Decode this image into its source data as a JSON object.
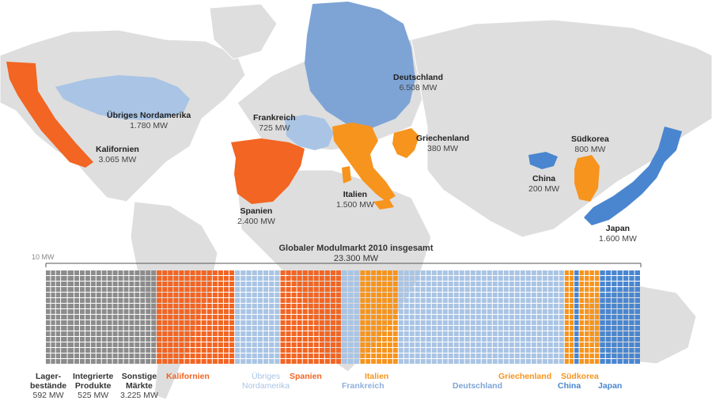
{
  "colors": {
    "ocean": "#ffffff",
    "land": "#dcdcdc",
    "gray": "#8c8c8c",
    "orange_dark": "#f26522",
    "orange_light": "#f7941d",
    "blue_light": "#a9c4e4",
    "blue_mid": "#7ea4d6",
    "blue_dark": "#4a86cf"
  },
  "map_labels": [
    {
      "name": "Übriges Nordamerika",
      "value": "1.780 MW"
    },
    {
      "name": "Kalifornien",
      "value": "3.065 MW"
    },
    {
      "name": "Frankreich",
      "value": "725 MW"
    },
    {
      "name": "Deutschland",
      "value": "6.508 MW"
    },
    {
      "name": "Griechenland",
      "value": "380 MW"
    },
    {
      "name": "Spanien",
      "value": "2.400 MW"
    },
    {
      "name": "Italien",
      "value": "1.500 MW"
    },
    {
      "name": "Südkorea",
      "value": "800 MW"
    },
    {
      "name": "China",
      "value": "200 MW"
    },
    {
      "name": "Japan",
      "value": "1.600 MW"
    }
  ],
  "chart_data": {
    "type": "waffle",
    "title": "Globaler Modulmarkt 2010 insgesamt",
    "total": "23.300 MW",
    "unit_note": "10 MW",
    "categories": [
      {
        "name": "Lager-\nbestände",
        "value": 592,
        "value_label": "592 MW",
        "color": "gray"
      },
      {
        "name": "Integrierte\nProdukte",
        "value": 525,
        "value_label": "525 MW",
        "color": "gray"
      },
      {
        "name": "Sonstige\nMärkte",
        "value": 3225,
        "value_label": "3.225 MW",
        "color": "gray"
      },
      {
        "name": "Kalifornien",
        "value": 3065,
        "color": "orange_dark"
      },
      {
        "name": "Übriges\nNordamerika",
        "value": 1780,
        "color": "blue_light"
      },
      {
        "name": "Spanien",
        "value": 2400,
        "color": "orange_dark"
      },
      {
        "name": "Frankreich",
        "value": 725,
        "color": "blue_light"
      },
      {
        "name": "Italien",
        "value": 1500,
        "color": "orange_light"
      },
      {
        "name": "Deutschland",
        "value": 6508,
        "color": "blue_light"
      },
      {
        "name": "Griechenland",
        "value": 380,
        "color": "orange_light"
      },
      {
        "name": "China",
        "value": 200,
        "color": "blue_dark"
      },
      {
        "name": "Südkorea",
        "value": 800,
        "color": "orange_light"
      },
      {
        "name": "Japan",
        "value": 1600,
        "color": "blue_dark"
      }
    ]
  }
}
